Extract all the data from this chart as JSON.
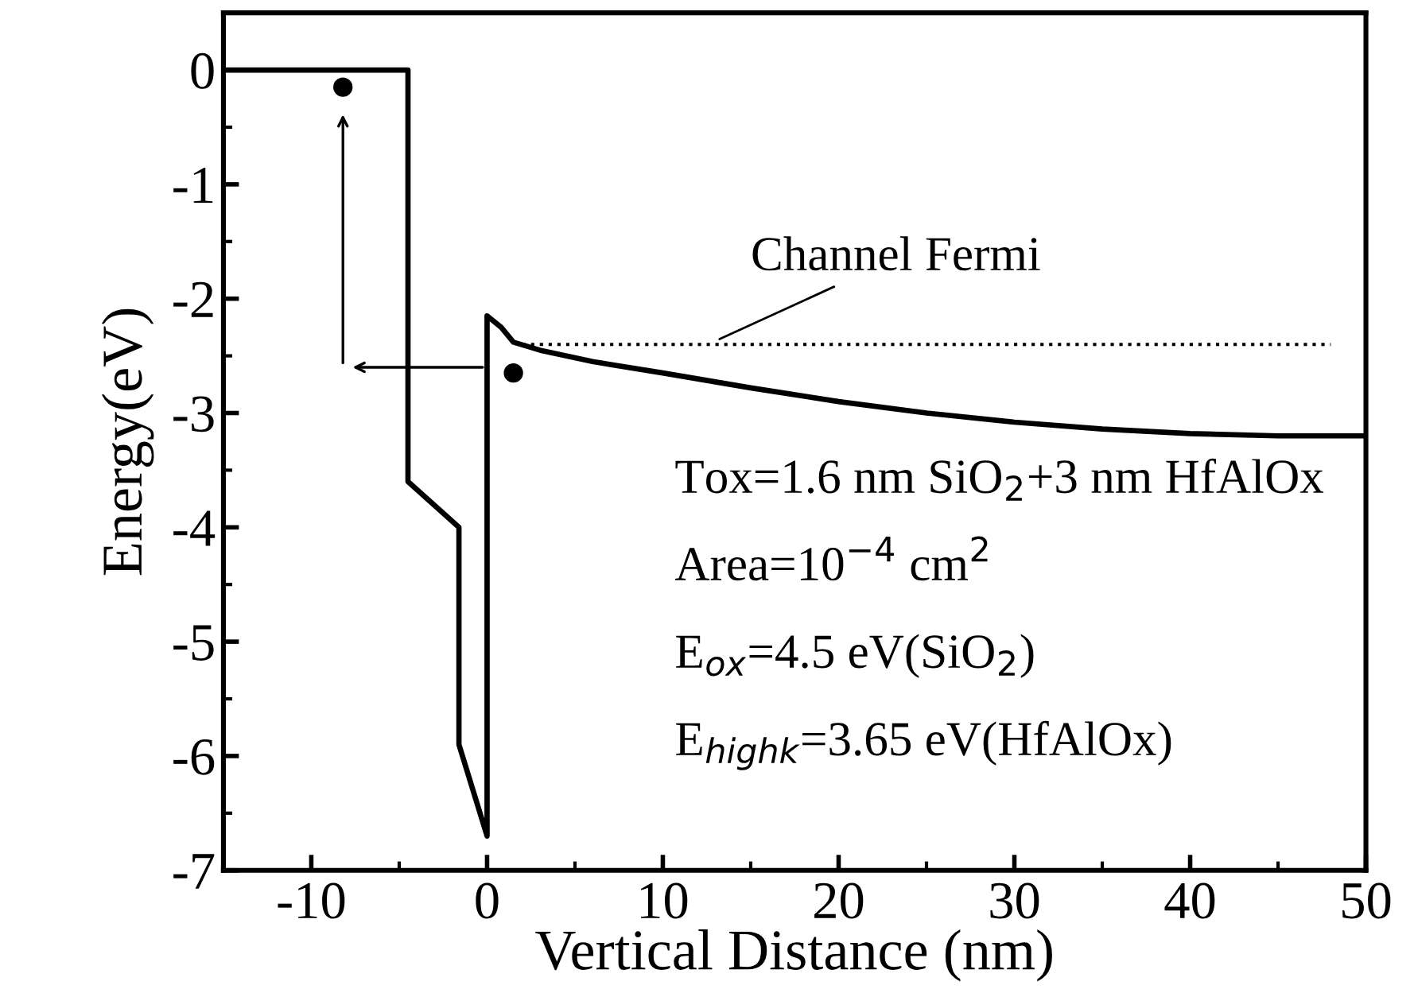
{
  "chart_data": {
    "type": "line",
    "xlabel": "Vertical Distance (nm)",
    "ylabel": "Energy(eV)",
    "xlim": [
      -15,
      50
    ],
    "xticks": [
      -10,
      0,
      10,
      20,
      30,
      40,
      50
    ],
    "ylim": [
      -7,
      0.5
    ],
    "yticks": [
      0,
      -1,
      -2,
      -3,
      -4,
      -5,
      -6,
      -7
    ],
    "grid": false,
    "legend": false,
    "series": [
      {
        "color": "#000000",
        "line_style": "solid",
        "x": [
          -15,
          -4.5,
          -4.5,
          -1.6,
          -1.6,
          0,
          0,
          0.8,
          1.5,
          3,
          6,
          10,
          15,
          20,
          25,
          30,
          35,
          40,
          45,
          50
        ],
        "values": [
          0,
          0,
          -3.6,
          -4.0,
          -5.9,
          -6.7,
          -2.15,
          -2.25,
          -2.38,
          -2.45,
          -2.55,
          -2.65,
          -2.78,
          -2.9,
          -3.0,
          -3.08,
          -3.14,
          -3.18,
          -3.2,
          -3.2
        ]
      },
      {
        "color": "#000000",
        "line_style": "dotted",
        "x": [
          2,
          48
        ],
        "values": [
          -2.4,
          -2.4
        ]
      },
      {
        "type": "scatter",
        "color": "#000000",
        "marker": "circle",
        "x": [
          -8.2,
          1.5
        ],
        "values": [
          -0.15,
          -2.65
        ]
      }
    ],
    "annotations": [
      {
        "text": "Channel Fermi",
        "x": 13,
        "y": -2.4
      },
      "Tox=1.6 nm SiO$_{2}$+3 nm HfAlOx",
      "Area=10$^{−4}$ cm$^{2}$",
      "E$_{ox}$=4.5 eV(SiO$_{2}$)",
      "E$_{highk}$=3.65 eV(HfAlOx)"
    ]
  }
}
